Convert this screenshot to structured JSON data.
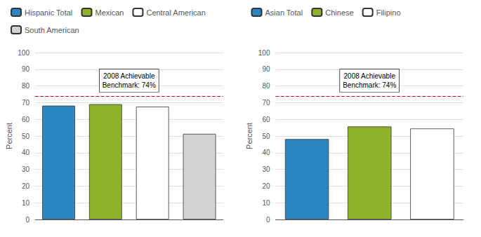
{
  "chart_data": [
    {
      "type": "bar",
      "categories": [
        null,
        null,
        null,
        null
      ],
      "series": [
        {
          "name": "Hispanic Total",
          "color": "#2E86C1",
          "values": [
            68.2,
            null,
            null,
            null
          ]
        },
        {
          "name": "Mexican",
          "color": "#8DB32A",
          "values": [
            null,
            69.1,
            null,
            null
          ]
        },
        {
          "name": "Central American",
          "color": "#FFFFFF",
          "values": [
            null,
            null,
            67.6,
            null
          ]
        },
        {
          "name": "South American",
          "color": "#D3D3D3",
          "values": [
            null,
            null,
            null,
            51.3
          ]
        }
      ],
      "ylabel": "Percent",
      "ylim": [
        0,
        100
      ],
      "yticks": [
        0,
        10,
        20,
        30,
        40,
        50,
        60,
        70,
        80,
        90,
        100
      ],
      "grid": true,
      "legend": "top",
      "reference_line": {
        "y": 74,
        "label": "2008 Achievable\nBenchmark: 74%",
        "color": "#CC0000",
        "line_style": "dashed"
      }
    },
    {
      "type": "bar",
      "categories": [
        null,
        null,
        null
      ],
      "series": [
        {
          "name": "Asian Total",
          "color": "#2E86C1",
          "values": [
            48.2,
            null,
            null
          ]
        },
        {
          "name": "Chinese",
          "color": "#8DB32A",
          "values": [
            null,
            55.7,
            null
          ]
        },
        {
          "name": "Filipino",
          "color": "#FFFFFF",
          "values": [
            null,
            null,
            54.5
          ]
        }
      ],
      "ylabel": "Percent",
      "ylim": [
        0,
        100
      ],
      "yticks": [
        0,
        10,
        20,
        30,
        40,
        50,
        60,
        70,
        80,
        90,
        100
      ],
      "grid": true,
      "legend": "top",
      "reference_line": {
        "y": 74,
        "label": "2008 Achievable\nBenchmark: 74%",
        "color": "#CC0000",
        "line_style": "dashed"
      }
    }
  ]
}
